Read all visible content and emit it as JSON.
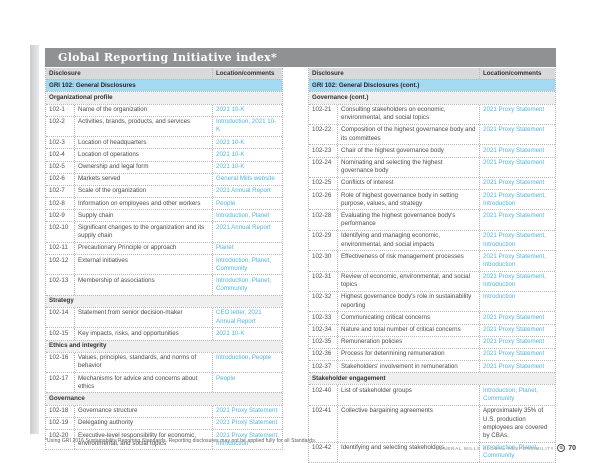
{
  "page": {
    "title": "Global Reporting Initiative index*",
    "footnote": "*Using GRI 2016 Sustainability Reporting Standards. Reporting disclosures may not be applied fully for all Standards.",
    "footer": {
      "report_name": "GENERAL MILLS GLOBAL RESPONSIBILITY",
      "logo_glyph": "G",
      "page_number": "70"
    }
  },
  "colors": {
    "titlebar_gray": "#8f9193",
    "header_gray": "#d8d9da",
    "band_blue": "#a4d9f2",
    "band_gray": "#efeff0",
    "link_blue": "#55b6dc",
    "body_text": "#4b4b4d"
  },
  "tables": [
    {
      "name": "left",
      "columns": {
        "disclosure": "Disclosure",
        "location": "Location/comments"
      },
      "rows": [
        {
          "type": "band-blue",
          "label": "GRI 102: General Disclosures"
        },
        {
          "type": "band-gray",
          "label": "Organizational profile"
        },
        {
          "type": "data",
          "id": "102-1",
          "desc": "Name of the organization",
          "loc": "2021 10-K",
          "link": true
        },
        {
          "type": "data",
          "id": "102-2",
          "desc": "Activities, brands, products, and services",
          "loc": "Introduction, 2021 10-K",
          "link": true
        },
        {
          "type": "data",
          "id": "102-3",
          "desc": "Location of headquarters",
          "loc": "2021 10-K",
          "link": true
        },
        {
          "type": "data",
          "id": "102-4",
          "desc": "Location of operations",
          "loc": "2021 10-K",
          "link": true
        },
        {
          "type": "data",
          "id": "102-5",
          "desc": "Ownership and legal form",
          "loc": "2021 10-K",
          "link": true
        },
        {
          "type": "data",
          "id": "102-6",
          "desc": "Markets served",
          "loc": "General Mills website",
          "link": true
        },
        {
          "type": "data",
          "id": "102-7",
          "desc": "Scale of the organization",
          "loc": "2021 Annual Report",
          "link": true
        },
        {
          "type": "data",
          "id": "102-8",
          "desc": "Information on employees and other workers",
          "loc": "People",
          "link": true
        },
        {
          "type": "data",
          "id": "102-9",
          "desc": "Supply chain",
          "loc": "Introduction, Planet",
          "link": true
        },
        {
          "type": "data",
          "id": "102-10",
          "desc": "Significant changes to the organization and its supply chain",
          "loc": "2021 Annual Report",
          "link": true
        },
        {
          "type": "data",
          "id": "102-11",
          "desc": "Precautionary Principle or approach",
          "loc": "Planet",
          "link": true
        },
        {
          "type": "data",
          "id": "102-12",
          "desc": "External initiatives",
          "loc": "Introduction, Planet, Community",
          "link": true
        },
        {
          "type": "data",
          "id": "102-13",
          "desc": "Membership of associations",
          "loc": "Introduction, Planet, Community",
          "link": true
        },
        {
          "type": "band-gray",
          "label": "Strategy"
        },
        {
          "type": "data",
          "id": "102-14",
          "desc": "Statement from senior decision-maker",
          "loc": "CEO letter, 2021 Annual Report",
          "link": true
        },
        {
          "type": "data",
          "id": "102-15",
          "desc": "Key impacts, risks, and opportunities",
          "loc": "2021 10-K",
          "link": true
        },
        {
          "type": "band-gray",
          "label": "Ethics and integrity"
        },
        {
          "type": "data",
          "id": "102-16",
          "desc": "Values, principles, standards, and norms of behavior",
          "loc": "Introduction, People",
          "link": true
        },
        {
          "type": "data",
          "id": "102-17",
          "desc": "Mechanisms for advice and concerns about ethics",
          "loc": "People",
          "link": true
        },
        {
          "type": "band-gray",
          "label": "Governance"
        },
        {
          "type": "data",
          "id": "102-18",
          "desc": "Governance structure",
          "loc": "2021 Proxy Statement",
          "link": true
        },
        {
          "type": "data",
          "id": "102-19",
          "desc": "Delegating authority",
          "loc": "2021 Proxy Statement",
          "link": true
        },
        {
          "type": "data",
          "id": "102-20",
          "desc": "Executive-level responsibility for economic, environmental, and social topics",
          "loc": "2021 Proxy Statement, Introduction",
          "link": true
        }
      ]
    },
    {
      "name": "right",
      "columns": {
        "disclosure": "Disclosure",
        "location": "Location/comments"
      },
      "rows": [
        {
          "type": "band-blue",
          "label": "GRI 102: General Disclosures (cont.)"
        },
        {
          "type": "band-gray",
          "label": "Governance (cont.)"
        },
        {
          "type": "data",
          "id": "102-21",
          "desc": "Consulting stakeholders on economic, environmental, and social topics",
          "loc": "2021 Proxy Statement",
          "link": true
        },
        {
          "type": "data",
          "id": "102-22",
          "desc": "Composition of the highest governance body and its committees",
          "loc": "2021 Proxy Statement",
          "link": true
        },
        {
          "type": "data",
          "id": "102-23",
          "desc": "Chair of the highest governance body",
          "loc": "2021 Proxy Statement",
          "link": true
        },
        {
          "type": "data",
          "id": "102-24",
          "desc": "Nominating and selecting the highest governance body",
          "loc": "2021 Proxy Statement",
          "link": true
        },
        {
          "type": "data",
          "id": "102-25",
          "desc": "Conflicts of interest",
          "loc": "2021 Proxy Statement",
          "link": true
        },
        {
          "type": "data",
          "id": "102-26",
          "desc": "Role of highest governance body in setting purpose, values, and strategy",
          "loc": "2021 Proxy Statement, Introduction",
          "link": true
        },
        {
          "type": "data",
          "id": "102-28",
          "desc": "Evaluating the highest governance body's performance",
          "loc": "2021 Proxy Statement",
          "link": true
        },
        {
          "type": "data",
          "id": "102-29",
          "desc": "Identifying and managing economic, environmental, and social impacts",
          "loc": "2021 Proxy Statement, Introduction",
          "link": true
        },
        {
          "type": "data",
          "id": "102-30",
          "desc": "Effectiveness of risk management processes",
          "loc": "2021 Proxy Statement, Introduction",
          "link": true
        },
        {
          "type": "data",
          "id": "102-31",
          "desc": "Review of economic, environmental, and social topics",
          "loc": "2021 Proxy Statement, Introduction",
          "link": true
        },
        {
          "type": "data",
          "id": "102-32",
          "desc": "Highest governance body's role in sustainability reporting",
          "loc": "Introduction",
          "link": true
        },
        {
          "type": "data",
          "id": "102-33",
          "desc": "Communicating critical concerns",
          "loc": "2021 Proxy Statement",
          "link": true
        },
        {
          "type": "data",
          "id": "102-34",
          "desc": "Nature and total number of critical concerns",
          "loc": "2021 Proxy Statement",
          "link": true
        },
        {
          "type": "data",
          "id": "102-35",
          "desc": "Remuneration policies",
          "loc": "2021 Proxy Statement",
          "link": true
        },
        {
          "type": "data",
          "id": "102-36",
          "desc": "Process for determining remuneration",
          "loc": "2021 Proxy Statement",
          "link": true
        },
        {
          "type": "data",
          "id": "102-37",
          "desc": "Stakeholders' involvement in remuneration",
          "loc": "2021 Proxy Statement",
          "link": true
        },
        {
          "type": "band-gray",
          "label": "Stakeholder engagement"
        },
        {
          "type": "data",
          "id": "102-40",
          "desc": "List of stakeholder groups",
          "loc": "Introduction, Planet, Community",
          "link": true
        },
        {
          "type": "data",
          "id": "102-41",
          "desc": "Collective bargaining agreements",
          "loc": "Approximately 35% of U.S. production employees are covered by CBAs.",
          "link": false
        },
        {
          "type": "data",
          "id": "102-42",
          "desc": "Identifying and selecting stakeholders",
          "loc": "Introduction, Planet, Community",
          "link": true
        }
      ]
    }
  ]
}
